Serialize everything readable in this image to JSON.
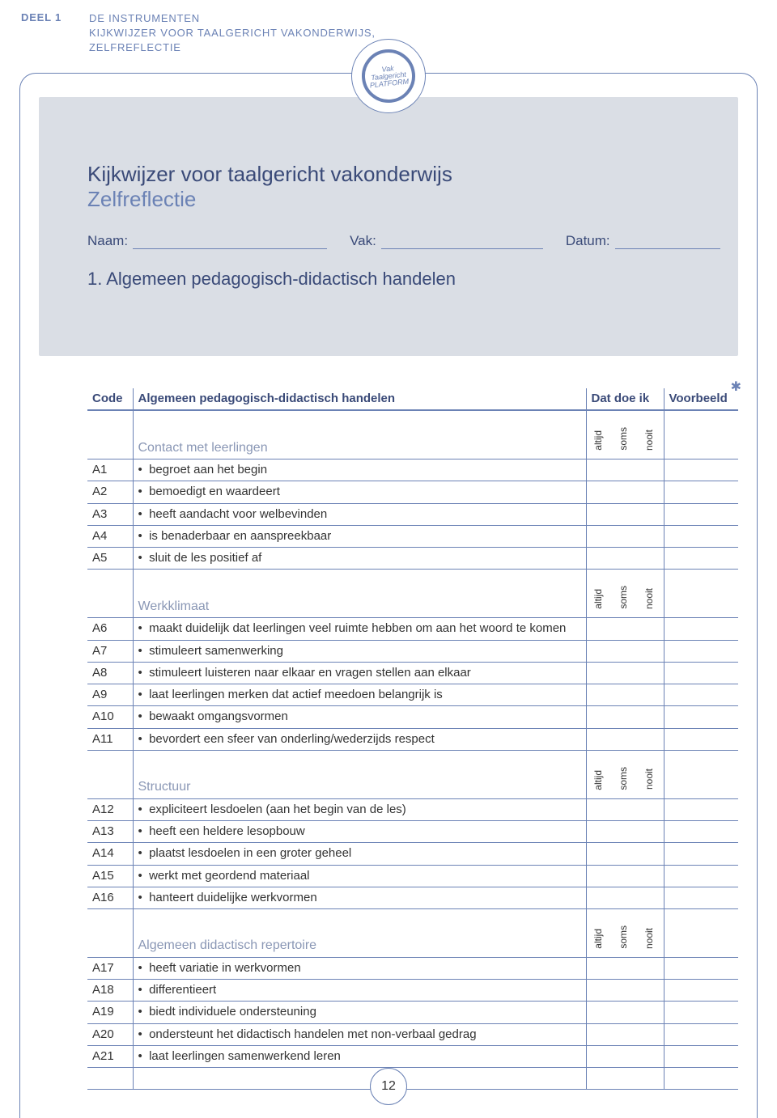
{
  "header": {
    "deel": "DEEL 1",
    "line1": "DE INSTRUMENTEN",
    "line2": "KIJKWIJZER VOOR TAALGERICHT VAKONDERWIJS,",
    "line3": "ZELFREFLECTIE"
  },
  "logo_text": "Vak\nTaalgericht\nPLATFORM",
  "title": "Kijkwijzer voor taalgericht vakonderwijs",
  "subtitle": "Zelfreflectie",
  "fields": {
    "naam": "Naam:",
    "vak": "Vak:",
    "datum": "Datum:"
  },
  "section_number": "1. Algemeen pedagogisch-didactisch handelen",
  "table_header": {
    "code": "Code",
    "desc": "Algemeen pedagogisch-didactisch handelen",
    "dat": "Dat doe ik",
    "voorbeeld": "Voorbeeld"
  },
  "rating_labels": {
    "altijd": "altijd",
    "soms": "soms",
    "nooit": "nooit"
  },
  "sections": [
    {
      "label": "Contact met leerlingen",
      "rows": [
        {
          "code": "A1",
          "text": "begroet aan het begin"
        },
        {
          "code": "A2",
          "text": "bemoedigt en waardeert"
        },
        {
          "code": "A3",
          "text": "heeft aandacht voor welbevinden"
        },
        {
          "code": "A4",
          "text": "is benaderbaar en aanspreekbaar"
        },
        {
          "code": "A5",
          "text": "sluit de les positief af"
        }
      ]
    },
    {
      "label": "Werkklimaat",
      "rows": [
        {
          "code": "A6",
          "text": "maakt duidelijk dat leerlingen veel ruimte hebben om aan het woord te komen"
        },
        {
          "code": "A7",
          "text": "stimuleert samenwerking"
        },
        {
          "code": "A8",
          "text": "stimuleert luisteren naar elkaar en vragen stellen aan elkaar"
        },
        {
          "code": "A9",
          "text": "laat leerlingen merken dat actief meedoen belangrijk is"
        },
        {
          "code": "A10",
          "text": "bewaakt omgangsvormen"
        },
        {
          "code": "A11",
          "text": "bevordert een sfeer van onderling/wederzijds respect"
        }
      ]
    },
    {
      "label": "Structuur",
      "rows": [
        {
          "code": "A12",
          "text": "expliciteert lesdoelen (aan het begin van de les)"
        },
        {
          "code": "A13",
          "text": "heeft een heldere lesopbouw"
        },
        {
          "code": "A14",
          "text": "plaatst lesdoelen in een groter geheel"
        },
        {
          "code": "A15",
          "text": "werkt met geordend materiaal"
        },
        {
          "code": "A16",
          "text": "hanteert duidelijke werkvormen"
        }
      ]
    },
    {
      "label": "Algemeen didactisch repertoire",
      "rows": [
        {
          "code": "A17",
          "text": "heeft variatie in werkvormen"
        },
        {
          "code": "A18",
          "text": "differentieert"
        },
        {
          "code": "A19",
          "text": "biedt individuele ondersteuning"
        },
        {
          "code": "A20",
          "text": "ondersteunt het didactisch handelen met non-verbaal gedrag"
        },
        {
          "code": "A21",
          "text": "laat leerlingen samenwerkend leren"
        }
      ]
    }
  ],
  "page_number": "12",
  "colors": {
    "accent": "#6b82b5",
    "grey_panel": "#dadee5",
    "text_heading": "#3a4a78",
    "text_muted": "#8a97b5"
  }
}
